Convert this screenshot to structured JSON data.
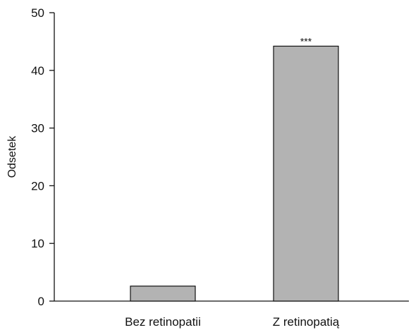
{
  "chart_data": {
    "type": "bar",
    "categories": [
      "Bez retinopatii",
      "Z retinopatią"
    ],
    "values": [
      2.6,
      44.2
    ],
    "annotations": [
      "",
      "***"
    ],
    "title": "",
    "xlabel": "",
    "ylabel": "Odsetek",
    "ylim": [
      0,
      50
    ],
    "yticks": [
      0,
      10,
      20,
      30,
      40,
      50
    ],
    "grid": false,
    "bar_color": "#b3b3b3"
  }
}
